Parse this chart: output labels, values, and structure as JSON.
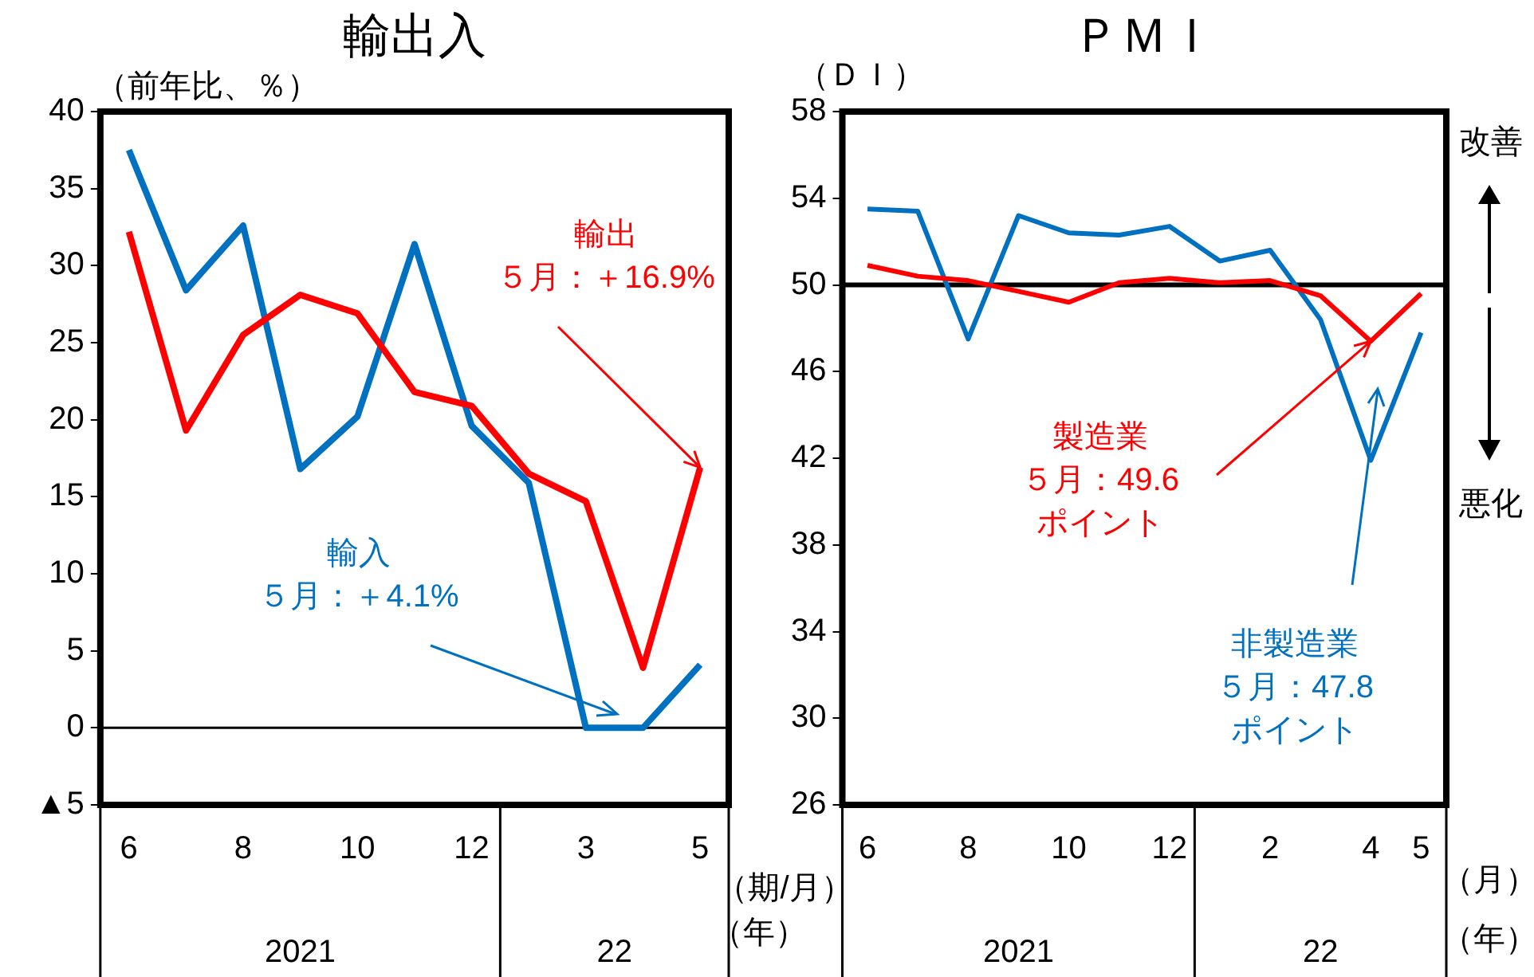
{
  "chart_data": [
    {
      "type": "line",
      "title": "輸出入",
      "ylabel": "（前年比、％）",
      "xlabel": "（期/月）",
      "categories": [
        "6",
        null,
        "8",
        null,
        "10",
        null,
        "12",
        null,
        "3",
        null,
        "5"
      ],
      "series": [
        {
          "color": "#ff0000",
          "values": [
            32.2,
            19.3,
            25.5,
            28.1,
            26.9,
            21.8,
            20.9,
            16.5,
            14.7,
            3.9,
            16.9
          ]
        },
        {
          "color": "#0070c0",
          "values": [
            37.5,
            28.4,
            32.6,
            16.8,
            20.2,
            31.4,
            19.6,
            15.9,
            0.0,
            0.0,
            4.1
          ]
        }
      ],
      "ylim": [
        -5,
        40
      ],
      "yticks": [
        {
          "value": -5,
          "label": "▲5"
        },
        0,
        5,
        10,
        15,
        20,
        25,
        30,
        35,
        40
      ],
      "ref_lines": [
        {
          "axis": "y",
          "value": 0,
          "color": "#000000"
        }
      ],
      "annotations": [
        "輸出",
        {
          "text": "５月：＋16.9%",
          "x": "5",
          "y": 16.9
        },
        "輸入",
        "５月：＋4.1%",
        "2021",
        "22",
        "（年）"
      ],
      "marker": "none",
      "legend": false
    },
    {
      "type": "line",
      "title": "ＰＭＩ",
      "ylabel": "（ＤＩ）",
      "xlabel": "（月）",
      "categories": [
        "6",
        null,
        "8",
        null,
        "10",
        null,
        "12",
        null,
        "2",
        null,
        "4",
        "5"
      ],
      "series": [
        {
          "color": "#ff0000",
          "values": [
            50.9,
            50.4,
            50.2,
            49.7,
            49.2,
            50.1,
            50.3,
            50.1,
            50.2,
            49.5,
            47.4,
            49.6
          ]
        },
        {
          "color": "#0070c0",
          "values": [
            53.5,
            53.4,
            47.5,
            53.2,
            52.4,
            52.3,
            52.7,
            51.1,
            51.6,
            48.4,
            41.9,
            47.8
          ]
        }
      ],
      "ylim": [
        26,
        58
      ],
      "yticks": [
        26,
        30,
        34,
        38,
        42,
        46,
        50,
        54,
        58
      ],
      "ref_lines": [
        {
          "axis": "y",
          "value": 50,
          "color": "#000000"
        }
      ],
      "annotations": [
        "製造業",
        {
          "text": "５月：49.6",
          "x": "4",
          "y": 47.4
        },
        "ポイント",
        "非製造業",
        "５月：47.8",
        "ポイント",
        "2021",
        "22",
        "（年）",
        "改善",
        "悪化"
      ],
      "marker": "none",
      "legend": false
    }
  ]
}
